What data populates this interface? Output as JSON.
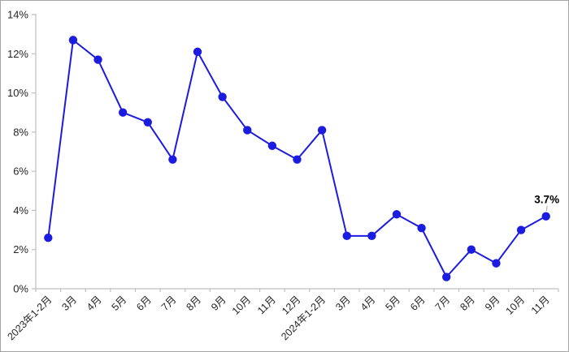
{
  "chart_data": {
    "type": "line",
    "title": "",
    "xlabel": "",
    "ylabel": "",
    "categories": [
      "2023年1-2月",
      "3月",
      "4月",
      "5月",
      "6月",
      "7月",
      "8月",
      "9月",
      "10月",
      "11月",
      "12月",
      "2024年1-2月",
      "3月",
      "4月",
      "5月",
      "6月",
      "7月",
      "8月",
      "9月",
      "10月",
      "11月"
    ],
    "values": [
      2.6,
      12.7,
      11.7,
      9.0,
      8.5,
      6.6,
      12.1,
      9.8,
      8.1,
      7.3,
      6.6,
      8.1,
      2.7,
      2.7,
      3.8,
      3.1,
      0.6,
      2.0,
      1.3,
      3.0,
      3.7
    ],
    "ylim": [
      0,
      14
    ],
    "y_tick_labels": [
      "0%",
      "2%",
      "4%",
      "6%",
      "8%",
      "10%",
      "12%",
      "14%"
    ],
    "grid": false,
    "legend": false,
    "line_color": "#1c1ce0",
    "marker_color": "#1c1ce0",
    "axis_color": "#bfbfbf",
    "text_color": "#262626",
    "annotation": {
      "text": "3.7%",
      "point_index": 20,
      "color": "#000000",
      "leader_color": "#a6a6a6"
    }
  }
}
